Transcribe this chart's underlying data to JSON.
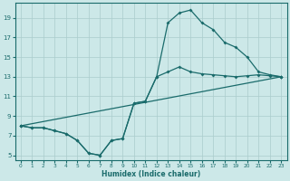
{
  "xlabel": "Humidex (Indice chaleur)",
  "bg_color": "#cce8e8",
  "grid_color": "#aacccc",
  "line_color": "#1a6b6b",
  "xlim": [
    -0.5,
    23.5
  ],
  "ylim": [
    4.5,
    20.5
  ],
  "xticks": [
    0,
    1,
    2,
    3,
    4,
    5,
    6,
    7,
    8,
    9,
    10,
    11,
    12,
    13,
    14,
    15,
    16,
    17,
    18,
    19,
    20,
    21,
    22,
    23
  ],
  "yticks": [
    5,
    7,
    9,
    11,
    13,
    15,
    17,
    19
  ],
  "line1_x": [
    0,
    1,
    2,
    3,
    4,
    5,
    6,
    7,
    8,
    9,
    10,
    11,
    12,
    13,
    14,
    15,
    16,
    17,
    18,
    19,
    20,
    21,
    22,
    23
  ],
  "line1_y": [
    8.0,
    7.8,
    7.8,
    7.5,
    7.2,
    6.5,
    5.2,
    5.0,
    6.5,
    6.7,
    10.3,
    10.5,
    13.0,
    18.5,
    19.5,
    19.8,
    18.5,
    17.8,
    16.5,
    16.0,
    15.0,
    13.5,
    13.2,
    13.0
  ],
  "line2_x": [
    0,
    1,
    2,
    3,
    4,
    5,
    6,
    7,
    8,
    9,
    10,
    11,
    12,
    13,
    14,
    15,
    16,
    17,
    18,
    19,
    20,
    21,
    22,
    23
  ],
  "line2_y": [
    8.0,
    7.8,
    7.8,
    7.5,
    7.2,
    6.5,
    5.2,
    5.0,
    6.5,
    6.7,
    10.3,
    10.5,
    13.0,
    13.5,
    14.0,
    13.5,
    13.3,
    13.2,
    13.1,
    13.0,
    13.1,
    13.2,
    13.1,
    13.0
  ],
  "line3_x": [
    0,
    23
  ],
  "line3_y": [
    8.0,
    13.0
  ]
}
